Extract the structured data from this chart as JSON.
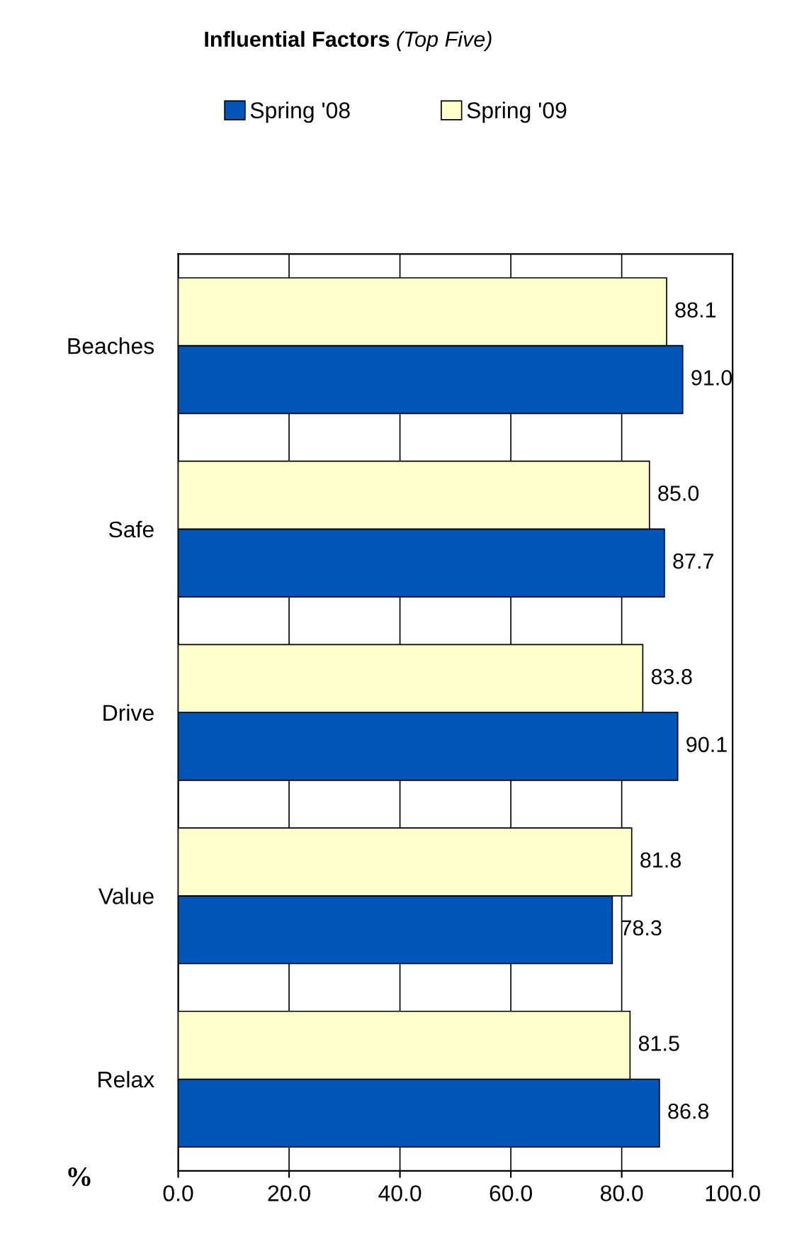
{
  "chart_data": {
    "type": "bar",
    "orientation": "horizontal",
    "title": "Influential Factors",
    "subtitle": "(Top Five)",
    "xlabel": "%",
    "categories": [
      "Beaches",
      "Safe",
      "Drive",
      "Value",
      "Relax"
    ],
    "series": [
      {
        "name": "Spring '08",
        "color": "#0055b8",
        "values": [
          91.0,
          87.7,
          90.1,
          78.3,
          86.8
        ],
        "value_labels": [
          "91.0",
          "87.7",
          "90.1",
          "78.3",
          "86.8"
        ]
      },
      {
        "name": "Spring '09",
        "color": "#ffffcc",
        "values": [
          88.1,
          85.0,
          83.8,
          81.8,
          81.5
        ],
        "value_labels": [
          "88.1",
          "85.0",
          "83.8",
          "81.8",
          "81.5"
        ]
      }
    ],
    "xlim": [
      0,
      100
    ],
    "xticks": [
      {
        "value": 0,
        "label": "0.0"
      },
      {
        "value": 20,
        "label": "20.0"
      },
      {
        "value": 40,
        "label": "40.0"
      },
      {
        "value": 60,
        "label": "60.0"
      },
      {
        "value": 80,
        "label": "80.0"
      },
      {
        "value": 100,
        "label": "100.0"
      }
    ],
    "grid": "x",
    "legend": "top"
  }
}
